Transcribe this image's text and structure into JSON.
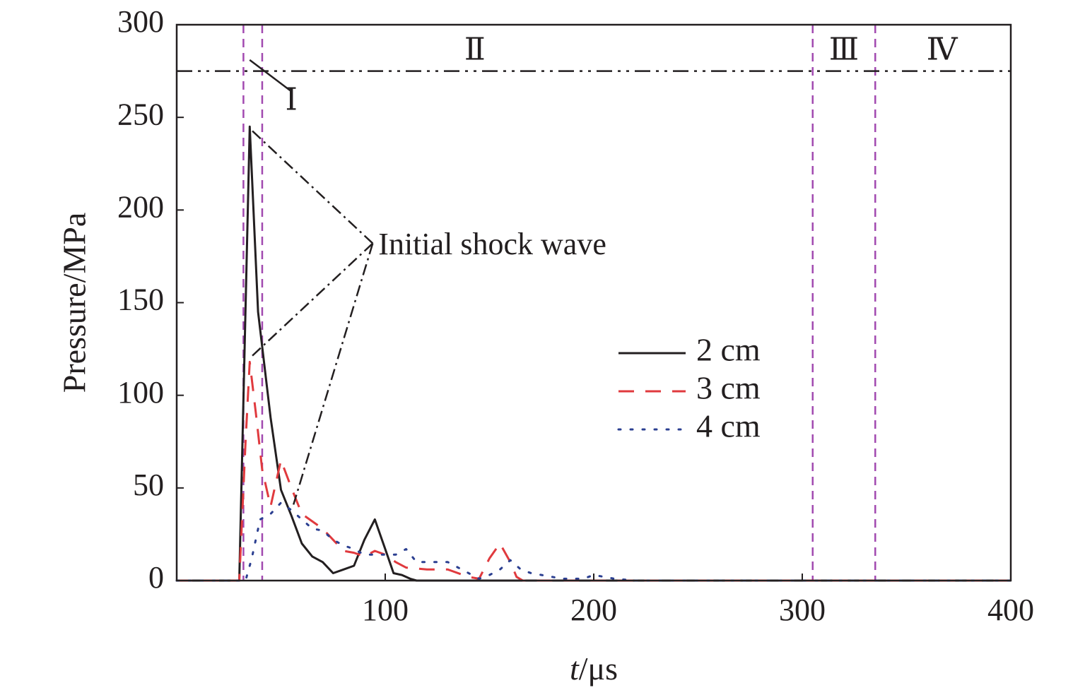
{
  "chart_data": {
    "type": "line",
    "title": "",
    "xlabel_italic": "t",
    "xlabel_rest": "/μs",
    "ylabel": "Pressure/MPa",
    "xlim": [
      0,
      400
    ],
    "ylim": [
      0,
      300
    ],
    "x_ticks": [
      100,
      200,
      300,
      400
    ],
    "y_ticks": [
      0,
      50,
      100,
      150,
      200,
      250,
      300
    ],
    "grid": false,
    "legend_position": "center-right",
    "series": [
      {
        "name": "2 cm",
        "color": "#231f20",
        "style": "solid",
        "points": [
          [
            0,
            0
          ],
          [
            30,
            0
          ],
          [
            35,
            245
          ],
          [
            39,
            145
          ],
          [
            45,
            88
          ],
          [
            50,
            49
          ],
          [
            55,
            35
          ],
          [
            60,
            20
          ],
          [
            65,
            13
          ],
          [
            70,
            10
          ],
          [
            75,
            4
          ],
          [
            80,
            6
          ],
          [
            85,
            8
          ],
          [
            90,
            22
          ],
          [
            95,
            33
          ],
          [
            100,
            17
          ],
          [
            104,
            4
          ],
          [
            108,
            3
          ],
          [
            112,
            1
          ],
          [
            115,
            0
          ],
          [
            200,
            0
          ],
          [
            300,
            0
          ],
          [
            400,
            0
          ]
        ]
      },
      {
        "name": "3 cm",
        "color": "#e03a3e",
        "style": "dashed",
        "points": [
          [
            0,
            0
          ],
          [
            30,
            0
          ],
          [
            33,
            75
          ],
          [
            35,
            118
          ],
          [
            38,
            90
          ],
          [
            41,
            60
          ],
          [
            45,
            40
          ],
          [
            50,
            65
          ],
          [
            55,
            50
          ],
          [
            60,
            36
          ],
          [
            65,
            32
          ],
          [
            70,
            28
          ],
          [
            75,
            22
          ],
          [
            80,
            16
          ],
          [
            85,
            15
          ],
          [
            90,
            13
          ],
          [
            95,
            16
          ],
          [
            100,
            14
          ],
          [
            105,
            10
          ],
          [
            110,
            7
          ],
          [
            120,
            6
          ],
          [
            130,
            6
          ],
          [
            140,
            2
          ],
          [
            145,
            1
          ],
          [
            150,
            12
          ],
          [
            155,
            20
          ],
          [
            160,
            10
          ],
          [
            163,
            2
          ],
          [
            166,
            0
          ],
          [
            200,
            0
          ],
          [
            300,
            0
          ],
          [
            400,
            0
          ]
        ]
      },
      {
        "name": "4 cm",
        "color": "#2b3f91",
        "style": "dotted",
        "points": [
          [
            0,
            0
          ],
          [
            30,
            0
          ],
          [
            33,
            0
          ],
          [
            36,
            12
          ],
          [
            40,
            33
          ],
          [
            45,
            36
          ],
          [
            50,
            42
          ],
          [
            55,
            38
          ],
          [
            60,
            33
          ],
          [
            65,
            28
          ],
          [
            70,
            27
          ],
          [
            75,
            22
          ],
          [
            80,
            19
          ],
          [
            85,
            17
          ],
          [
            90,
            14
          ],
          [
            95,
            14
          ],
          [
            100,
            14
          ],
          [
            105,
            14
          ],
          [
            110,
            17
          ],
          [
            115,
            10
          ],
          [
            120,
            10
          ],
          [
            130,
            10
          ],
          [
            140,
            4
          ],
          [
            145,
            1
          ],
          [
            150,
            3
          ],
          [
            155,
            6
          ],
          [
            160,
            11
          ],
          [
            165,
            6
          ],
          [
            170,
            4
          ],
          [
            175,
            3
          ],
          [
            185,
            1
          ],
          [
            195,
            1
          ],
          [
            200,
            3
          ],
          [
            210,
            1
          ],
          [
            220,
            0
          ],
          [
            300,
            0
          ],
          [
            400,
            0
          ]
        ]
      }
    ],
    "region_boundaries_x": [
      32,
      41,
      305,
      335
    ],
    "threshold_y": 275,
    "regions": [
      {
        "label": "Ⅰ",
        "x": 55,
        "y": 258
      },
      {
        "label": "Ⅱ",
        "x": 143,
        "y": 285
      },
      {
        "label": "Ⅲ",
        "x": 320,
        "y": 285
      },
      {
        "label": "Ⅳ",
        "x": 367,
        "y": 285
      }
    ],
    "region_I_leader": [
      [
        35,
        281
      ],
      [
        55,
        264
      ]
    ],
    "annotation": {
      "text": "Initial shock wave",
      "x": 94,
      "y": 180,
      "anchor": [
        94,
        182
      ],
      "targets": [
        [
          35,
          244
        ],
        [
          35,
          120
        ],
        [
          56,
          41
        ]
      ]
    }
  }
}
